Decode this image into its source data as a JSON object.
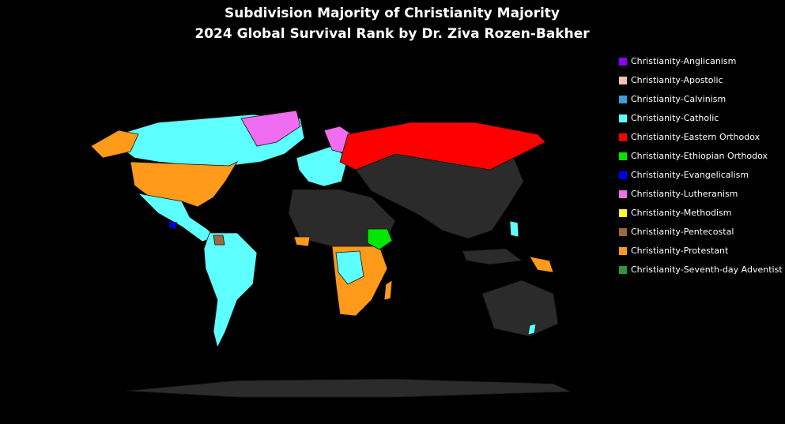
{
  "title": [
    "Subdivision Majority of Christianity Majority",
    "2024 Global Survival Rank by Dr. Ziva Rozen-Bakher"
  ],
  "legend": [
    {
      "name": "Christianity-Anglicanism",
      "color": "#8b00ff"
    },
    {
      "name": "Christianity-Apostolic",
      "color": "#f4c2b0"
    },
    {
      "name": "Christianity-Calvinism",
      "color": "#3a9fd8"
    },
    {
      "name": "Christianity-Catholic",
      "color": "#5effff"
    },
    {
      "name": "Christianity-Eastern Orthodox",
      "color": "#ff0000"
    },
    {
      "name": "Christianity-Ethiopian Orthodox",
      "color": "#00e600"
    },
    {
      "name": "Christianity-Evangelicalism",
      "color": "#0000e6"
    },
    {
      "name": "Christianity-Lutheranism",
      "color": "#f06cf0"
    },
    {
      "name": "Christianity-Methodism",
      "color": "#ffff2a"
    },
    {
      "name": "Christianity-Pentecostal",
      "color": "#9a6a3a"
    },
    {
      "name": "Christianity-Protestant",
      "color": "#ff9a1a"
    },
    {
      "name": "Christianity-Seventh-day Adventist",
      "color": "#2e9a35"
    }
  ]
}
